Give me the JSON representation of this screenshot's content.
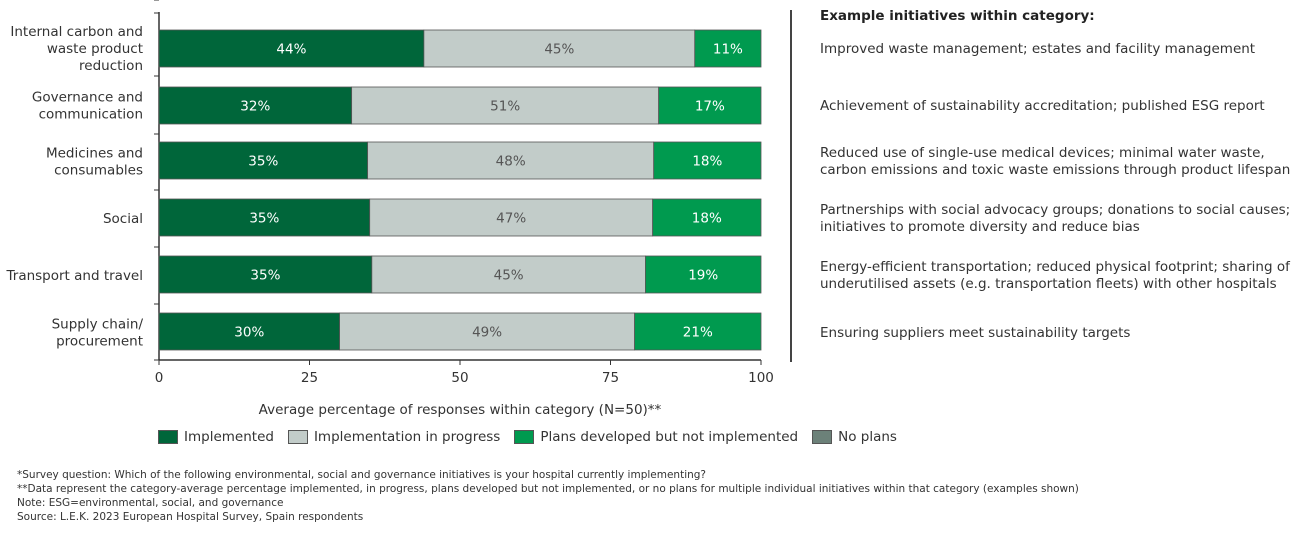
{
  "chart_data": {
    "type": "bar",
    "orientation": "horizontal",
    "stacked": true,
    "categories": [
      "Internal carbon and waste product reduction",
      "Governance and communication",
      "Medicines and consumables",
      "Social",
      "Transport and travel",
      "Supply chain/ procurement"
    ],
    "category_lines": [
      [
        "Internal carbon and",
        "waste product",
        "reduction"
      ],
      [
        "Governance and",
        "communication"
      ],
      [
        "Medicines and",
        "consumables"
      ],
      [
        "Social"
      ],
      [
        "Transport and travel"
      ],
      [
        "Supply chain/",
        "procurement"
      ]
    ],
    "series": [
      {
        "name": "Implemented",
        "color": "#00663a",
        "values": [
          44,
          32,
          35,
          35,
          35,
          30
        ],
        "labels": [
          "44%",
          "32%",
          "35%",
          "35%",
          "35%",
          "30%"
        ]
      },
      {
        "name": "Implementation in progress",
        "color": "#c2ccc9",
        "values": [
          45,
          51,
          48,
          47,
          45,
          49
        ],
        "labels": [
          "45%",
          "51%",
          "48%",
          "47%",
          "45%",
          "49%"
        ]
      },
      {
        "name": "Plans developed but not implemented",
        "color": "#009a4f",
        "values": [
          11,
          17,
          18,
          18,
          19,
          21
        ],
        "labels": [
          "11%",
          "17%",
          "18%",
          "18%",
          "19%",
          "21%"
        ]
      },
      {
        "name": "No plans",
        "color": "#6c8179",
        "values": [
          0,
          0,
          0,
          0,
          0,
          0
        ],
        "labels": [
          "",
          "",
          "",
          "",
          "",
          ""
        ]
      }
    ],
    "xlim": [
      0,
      100
    ],
    "xticks": [
      "0",
      "25",
      "50",
      "75",
      "100"
    ],
    "xlabel": "Average percentage of responses within category (N=50)**",
    "grid": false,
    "legend_position": "bottom"
  },
  "examples": {
    "title": "Example initiatives within category:",
    "items": [
      [
        "Improved waste management; estates and facility management"
      ],
      [
        "Achievement of sustainability accreditation; published ESG report"
      ],
      [
        "Reduced use of single-use medical devices; minimal water waste,",
        "carbon emissions and toxic waste emissions through product lifespan"
      ],
      [
        "Partnerships with social advocacy groups; donations to social causes;",
        "initiatives to promote diversity and reduce bias"
      ],
      [
        "Energy-efficient transportation; reduced physical footprint; sharing of",
        "underutilised assets (e.g. transportation fleets) with other hospitals"
      ],
      [
        "Ensuring suppliers meet sustainability targets"
      ]
    ]
  },
  "notes": [
    "*Survey question: Which of the following environmental, social and governance initiatives is your hospital currently implementing?",
    "**Data represent the category-average percentage implemented, in progress, plans developed but not implemented, or no plans for multiple individual initiatives within that category (examples shown)",
    "Note: ESG=environmental, social, and governance",
    "Source: L.E.K. 2023 European Hospital Survey, Spain respondents"
  ]
}
